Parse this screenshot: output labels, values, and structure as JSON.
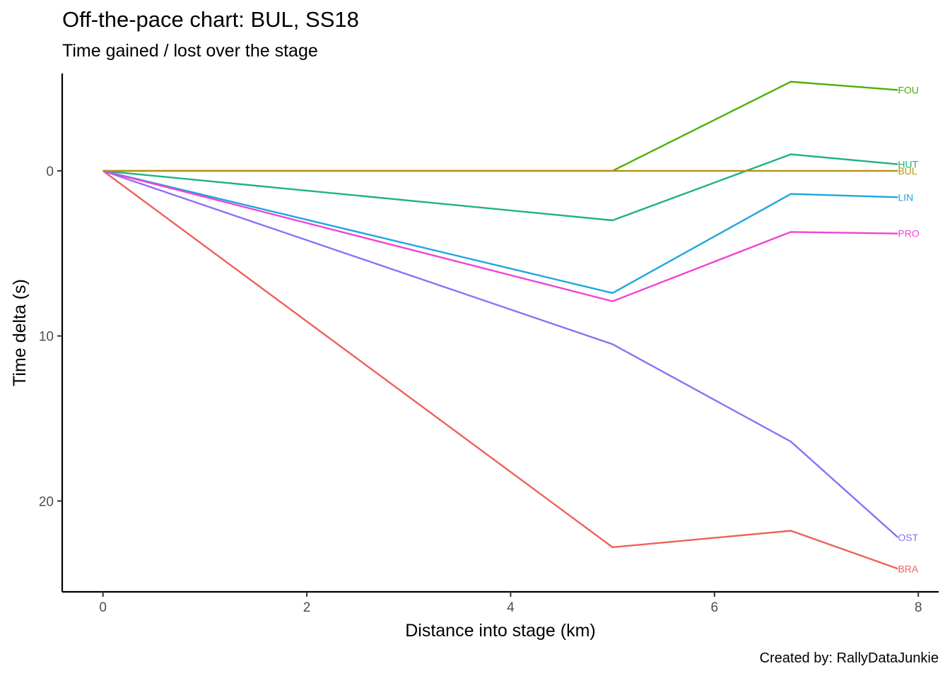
{
  "chart_data": {
    "type": "line",
    "title": "Off-the-pace chart: BUL, SS18",
    "subtitle": "Time gained / lost over the stage",
    "xlabel": "Distance into stage (km)",
    "ylabel": "Time delta (s)",
    "caption": "Created by: RallyDataJunkie",
    "x_ticks": [
      0,
      2,
      4,
      6,
      8
    ],
    "y_ticks": [
      0,
      10,
      20
    ],
    "xlim": [
      -0.4,
      8.2
    ],
    "ylim_reversed": [
      -5.9,
      25.5
    ],
    "y_reversed": true,
    "grid": false,
    "legend": "none (direct labels at line ends)",
    "x": [
      0,
      5.0,
      6.75,
      7.8
    ],
    "series": [
      {
        "name": "FOU",
        "color": "#4daf00",
        "values": [
          0,
          0,
          -5.4,
          -4.9
        ]
      },
      {
        "name": "HUT",
        "color": "#1fb37e",
        "values": [
          0,
          3.0,
          -1.0,
          -0.4
        ]
      },
      {
        "name": "BUL",
        "color": "#b8910d",
        "values": [
          0,
          0,
          0,
          0
        ]
      },
      {
        "name": "LIN",
        "color": "#1ea6e0",
        "values": [
          0,
          7.4,
          1.4,
          1.6
        ]
      },
      {
        "name": "PRO",
        "color": "#f043d3",
        "values": [
          0,
          7.9,
          3.7,
          3.8
        ]
      },
      {
        "name": "OST",
        "color": "#8f6ef7",
        "values": [
          0,
          10.5,
          16.4,
          22.2
        ]
      },
      {
        "name": "BRA",
        "color": "#ee6159",
        "values": [
          0,
          22.8,
          21.8,
          24.1
        ]
      }
    ]
  }
}
